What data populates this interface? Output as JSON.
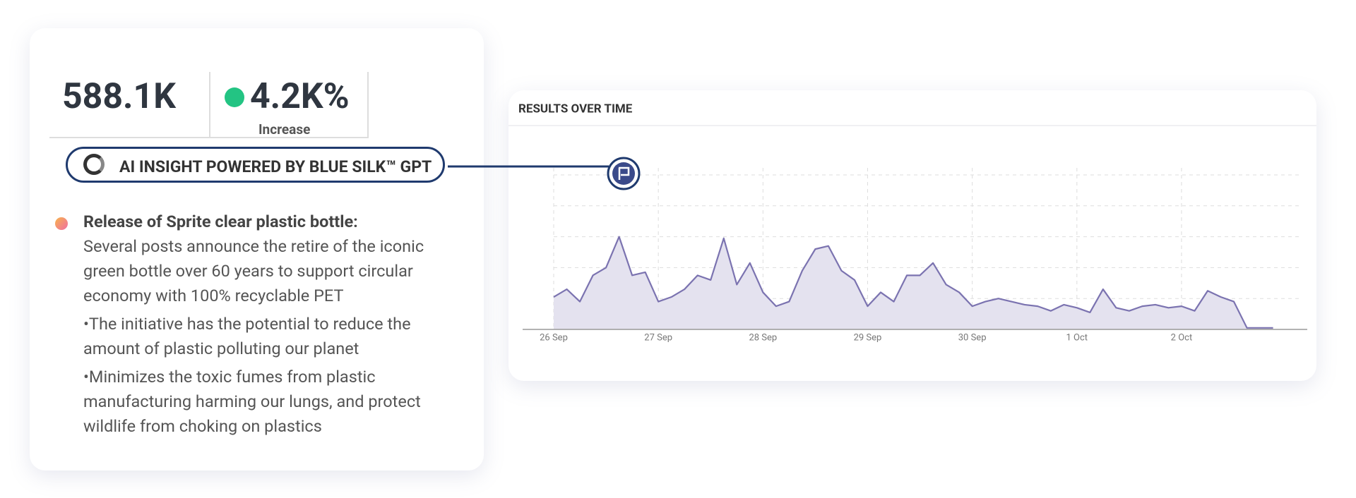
{
  "metric": {
    "value": "588.1K",
    "change": "4.2K%",
    "change_label": "Increase"
  },
  "insight": {
    "banner": "AI INSIGHT POWERED BY BLUE SILK™ GPT",
    "title": "Release of Sprite clear plastic bottle:",
    "paragraphs": [
      "Several posts announce the retire of the iconic green bottle over 60 years to support circular economy with 100% recyclable PET",
      "•The initiative  has the potential to reduce the amount of plastic polluting our planet",
      "•Minimizes the toxic fumes from plastic manufacturing harming our lungs, and protect wildlife from choking on plastics"
    ]
  },
  "chart_data": {
    "type": "area",
    "title": "RESULTS OVER TIME",
    "categories": [
      "26 Sep",
      null,
      null,
      null,
      null,
      null,
      null,
      null,
      "27 Sep",
      null,
      null,
      null,
      null,
      null,
      null,
      null,
      "28 Sep",
      null,
      null,
      null,
      null,
      null,
      null,
      null,
      "29 Sep",
      null,
      null,
      null,
      null,
      null,
      null,
      null,
      "30 Sep",
      null,
      null,
      null,
      null,
      null,
      null,
      null,
      "1 Oct",
      null,
      null,
      null,
      null,
      null,
      null,
      null,
      "2 Oct",
      null,
      null,
      null,
      null,
      null,
      null,
      null
    ],
    "values": [
      21,
      26,
      18,
      35,
      40,
      60,
      35,
      37,
      18,
      21,
      26,
      35,
      32,
      59,
      29,
      43,
      24,
      15,
      18,
      38,
      52,
      54,
      38,
      32,
      15,
      24,
      18,
      35,
      35,
      43,
      29,
      24,
      15,
      18,
      20,
      18,
      16,
      15,
      12,
      16,
      14,
      11,
      26,
      14,
      12,
      15,
      16,
      14,
      15,
      12,
      25,
      21,
      18,
      1,
      1,
      1
    ],
    "color": "#7b73b0",
    "fill": "#e4e2ef",
    "ylim": [
      0,
      100
    ],
    "grid": true
  }
}
